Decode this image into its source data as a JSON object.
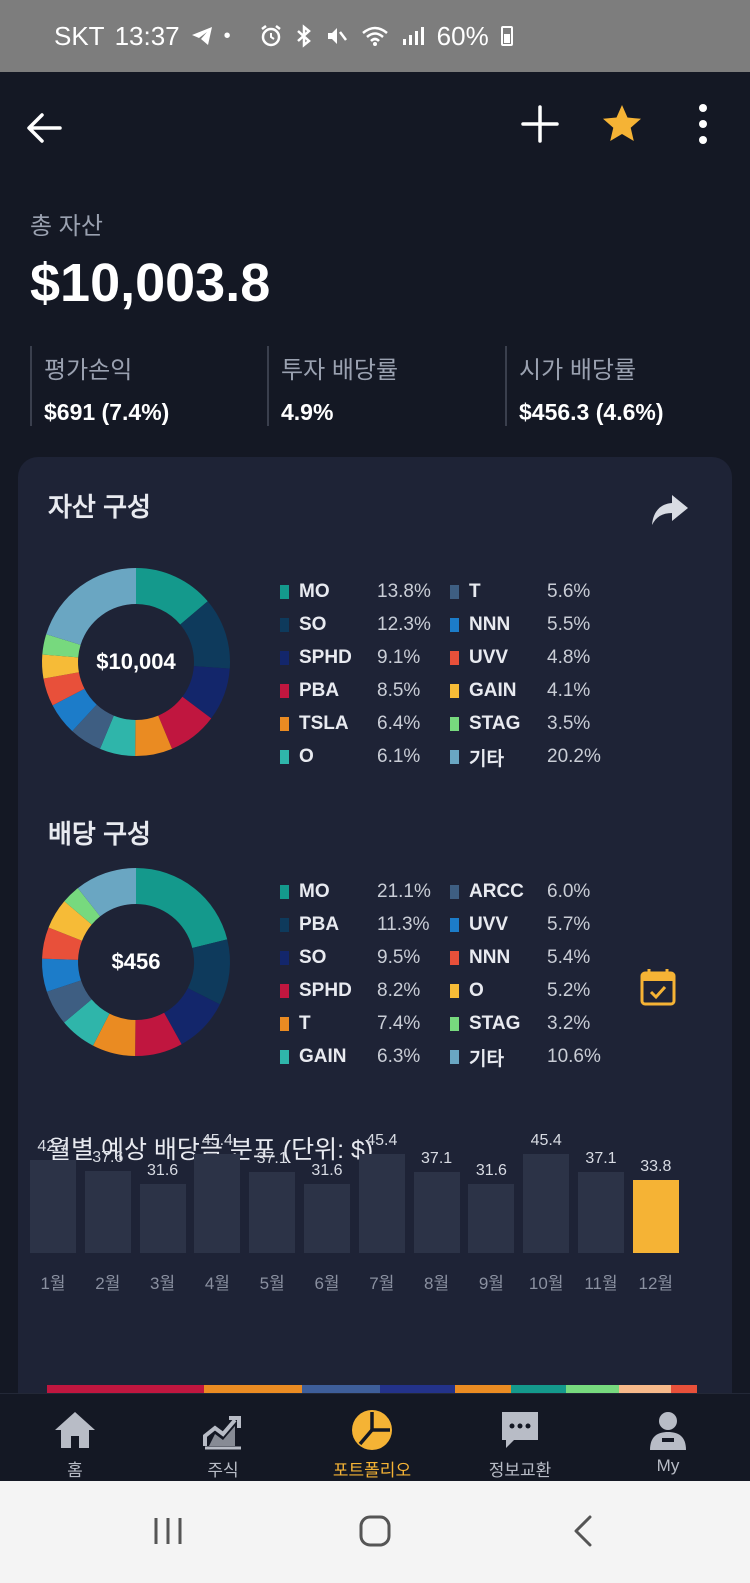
{
  "status_bar": {
    "carrier": "SKT",
    "time": "13:37",
    "battery": "60%"
  },
  "summary": {
    "total_label": "총 자산",
    "total_value": "$10,003.8",
    "stats": [
      {
        "label": "평가손익",
        "value": "$691 (7.4%)"
      },
      {
        "label": "투자 배당률",
        "value": "4.9%"
      },
      {
        "label": "시가 배당률",
        "value": "$456.3 (4.6%)"
      }
    ]
  },
  "asset_composition": {
    "title": "자산 구성",
    "center_label": "$10,004",
    "items": [
      {
        "name": "MO",
        "pct": "13.8%",
        "value": 13.8,
        "color": "#14998c"
      },
      {
        "name": "SO",
        "pct": "12.3%",
        "value": 12.3,
        "color": "#0e3a5c"
      },
      {
        "name": "SPHD",
        "pct": "9.1%",
        "value": 9.1,
        "color": "#13266b"
      },
      {
        "name": "PBA",
        "pct": "8.5%",
        "value": 8.5,
        "color": "#c0163f"
      },
      {
        "name": "TSLA",
        "pct": "6.4%",
        "value": 6.4,
        "color": "#ea8b22"
      },
      {
        "name": "O",
        "pct": "6.1%",
        "value": 6.1,
        "color": "#2fb5aa"
      },
      {
        "name": "T",
        "pct": "5.6%",
        "value": 5.6,
        "color": "#3e5e82"
      },
      {
        "name": "NNN",
        "pct": "5.5%",
        "value": 5.5,
        "color": "#1c7cc9"
      },
      {
        "name": "UVV",
        "pct": "4.8%",
        "value": 4.8,
        "color": "#e8503a"
      },
      {
        "name": "GAIN",
        "pct": "4.1%",
        "value": 4.1,
        "color": "#f6bb37"
      },
      {
        "name": "STAG",
        "pct": "3.5%",
        "value": 3.5,
        "color": "#77d97e"
      },
      {
        "name": "기타",
        "pct": "20.2%",
        "value": 20.2,
        "color": "#6aa6c2"
      }
    ]
  },
  "dividend_composition": {
    "title": "배당 구성",
    "center_label": "$456",
    "items": [
      {
        "name": "MO",
        "pct": "21.1%",
        "value": 21.1,
        "color": "#14998c"
      },
      {
        "name": "PBA",
        "pct": "11.3%",
        "value": 11.3,
        "color": "#0e3a5c"
      },
      {
        "name": "SO",
        "pct": "9.5%",
        "value": 9.5,
        "color": "#13266b"
      },
      {
        "name": "SPHD",
        "pct": "8.2%",
        "value": 8.2,
        "color": "#c0163f"
      },
      {
        "name": "T",
        "pct": "7.4%",
        "value": 7.4,
        "color": "#ea8b22"
      },
      {
        "name": "GAIN",
        "pct": "6.3%",
        "value": 6.3,
        "color": "#2fb5aa"
      },
      {
        "name": "ARCC",
        "pct": "6.0%",
        "value": 6.0,
        "color": "#3e5e82"
      },
      {
        "name": "UVV",
        "pct": "5.7%",
        "value": 5.7,
        "color": "#1c7cc9"
      },
      {
        "name": "NNN",
        "pct": "5.4%",
        "value": 5.4,
        "color": "#e8503a"
      },
      {
        "name": "O",
        "pct": "5.2%",
        "value": 5.2,
        "color": "#f6bb37"
      },
      {
        "name": "STAG",
        "pct": "3.2%",
        "value": 3.2,
        "color": "#77d97e"
      },
      {
        "name": "기타",
        "pct": "10.6%",
        "value": 10.6,
        "color": "#6aa6c2"
      }
    ]
  },
  "monthly_dividends": {
    "title": "월별 예상 배당금 분포 (단위: $)",
    "months": [
      "1월",
      "2월",
      "3월",
      "4월",
      "5월",
      "6월",
      "7월",
      "8월",
      "9월",
      "10월",
      "11월",
      "12월"
    ],
    "values": [
      "42.7",
      "37.6",
      "31.6",
      "45.4",
      "37.1",
      "31.6",
      "45.4",
      "37.1",
      "31.6",
      "45.4",
      "37.1",
      "33.8"
    ],
    "highlight_month": "12월",
    "bar_color": "#2c3347",
    "highlight_color": "#f5b335"
  },
  "color_strip": [
    {
      "color": "#c0163f",
      "share": 24
    },
    {
      "color": "#ea8b22",
      "share": 15
    },
    {
      "color": "#3e5e9a",
      "share": 12
    },
    {
      "color": "#23328a",
      "share": 11.5
    },
    {
      "color": "#ea8b22",
      "share": 8.5
    },
    {
      "color": "#14998c",
      "share": 8.5
    },
    {
      "color": "#77d97e",
      "share": 8
    },
    {
      "color": "#f7b98a",
      "share": 8
    },
    {
      "color": "#e8503a",
      "share": 4
    }
  ],
  "bottom_nav": {
    "items": [
      {
        "label": "홈",
        "icon": "home-icon"
      },
      {
        "label": "주식",
        "icon": "trend-chart-icon"
      },
      {
        "label": "포트폴리오",
        "icon": "pie-chart-icon",
        "active": true
      },
      {
        "label": "정보교환",
        "icon": "chat-icon"
      },
      {
        "label": "My",
        "icon": "user-icon"
      }
    ],
    "active_color": "#f5b335"
  }
}
